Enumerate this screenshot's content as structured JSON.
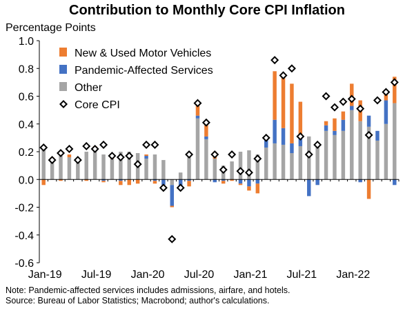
{
  "chart_data": {
    "type": "bar",
    "title": "Contribution to Monthly Core CPI Inflation",
    "ylabel": "Percentage Points",
    "ylim": [
      -0.6,
      1.0
    ],
    "yticks": [
      "1.0",
      "0.8",
      "0.6",
      "0.4",
      "0.2",
      "0.0",
      "-0.2",
      "-0.4",
      "-0.6"
    ],
    "ytick_values": [
      1.0,
      0.8,
      0.6,
      0.4,
      0.2,
      0.0,
      -0.2,
      -0.4,
      -0.6
    ],
    "xtick_labels": [
      "Jan-19",
      "Jul-19",
      "Jan-20",
      "Jul-20",
      "Jan-21",
      "Jul-21",
      "Jan-22"
    ],
    "xtick_indices": [
      0,
      6,
      12,
      18,
      24,
      30,
      36
    ],
    "grid": false,
    "legend_position": "top-left",
    "categories": [
      "Jan-19",
      "Feb-19",
      "Mar-19",
      "Apr-19",
      "May-19",
      "Jun-19",
      "Jul-19",
      "Aug-19",
      "Sep-19",
      "Oct-19",
      "Nov-19",
      "Dec-19",
      "Jan-20",
      "Feb-20",
      "Mar-20",
      "Apr-20",
      "May-20",
      "Jun-20",
      "Jul-20",
      "Aug-20",
      "Sep-20",
      "Oct-20",
      "Nov-20",
      "Dec-20",
      "Jan-21",
      "Feb-21",
      "Mar-21",
      "Apr-21",
      "May-21",
      "Jun-21",
      "Jul-21",
      "Aug-21",
      "Sep-21",
      "Oct-21",
      "Nov-21",
      "Dec-21",
      "Jan-22",
      "Feb-22",
      "Mar-22",
      "Apr-22",
      "May-22",
      "Jun-22"
    ],
    "series": [
      {
        "name": "New & Used Motor Vehicles",
        "kind": "bar",
        "color": "#ED7D31",
        "values": [
          -0.04,
          0.01,
          -0.01,
          0.02,
          0.0,
          -0.01,
          0.02,
          -0.01,
          0.01,
          -0.03,
          -0.04,
          -0.03,
          0.01,
          -0.02,
          -0.01,
          -0.01,
          -0.02,
          -0.04,
          0.09,
          0.1,
          0.05,
          -0.02,
          -0.01,
          -0.01,
          -0.03,
          -0.07,
          0.01,
          0.35,
          0.38,
          0.43,
          0.25,
          0.0,
          0.0,
          0.03,
          0.09,
          0.06,
          0.16,
          0.15,
          -0.14,
          0.0,
          0.05,
          0.19
        ]
      },
      {
        "name": "Pandemic-Affected Services",
        "kind": "bar",
        "color": "#4472C4",
        "values": [
          0.0,
          0.01,
          0.0,
          0.0,
          0.01,
          0.0,
          0.0,
          -0.01,
          0.0,
          -0.01,
          0.0,
          0.0,
          0.02,
          -0.01,
          -0.04,
          -0.15,
          -0.05,
          -0.01,
          0.02,
          0.02,
          -0.02,
          -0.01,
          0.0,
          -0.03,
          -0.05,
          -0.03,
          0.06,
          0.17,
          0.12,
          0.07,
          0.07,
          -0.12,
          -0.04,
          0.04,
          0.03,
          0.08,
          0.03,
          -0.02,
          0.08,
          0.07,
          0.17,
          -0.04
        ]
      },
      {
        "name": "Other",
        "kind": "bar",
        "color": "#A5A5A5",
        "values": [
          0.22,
          0.14,
          0.17,
          0.16,
          0.13,
          0.2,
          0.22,
          0.18,
          0.15,
          0.2,
          0.2,
          0.19,
          0.15,
          0.18,
          0.14,
          -0.04,
          0.05,
          0.16,
          0.44,
          0.29,
          0.15,
          0.1,
          0.13,
          0.2,
          0.21,
          0.18,
          0.23,
          0.26,
          0.25,
          0.19,
          0.24,
          0.31,
          0.24,
          0.35,
          0.32,
          0.35,
          0.5,
          0.42,
          0.38,
          0.28,
          0.4,
          0.55
        ]
      },
      {
        "name": "Core CPI",
        "kind": "marker",
        "color": "#000000",
        "values": [
          0.23,
          0.14,
          0.19,
          0.22,
          0.14,
          0.24,
          0.22,
          0.25,
          0.17,
          0.16,
          0.17,
          0.11,
          0.25,
          0.25,
          -0.06,
          -0.43,
          -0.06,
          0.18,
          0.55,
          0.41,
          0.18,
          0.07,
          0.18,
          0.06,
          0.05,
          0.15,
          0.3,
          0.86,
          0.75,
          0.8,
          0.31,
          0.18,
          0.25,
          0.6,
          0.52,
          0.56,
          0.58,
          0.51,
          0.32,
          0.57,
          0.63,
          0.7
        ]
      }
    ]
  },
  "notes": {
    "line1": "Note: Pandemic-affected services includes admissions, airfare, and hotels.",
    "line2": "Source: Bureau of Labor Statistics; Macrobond; author's calculations."
  }
}
